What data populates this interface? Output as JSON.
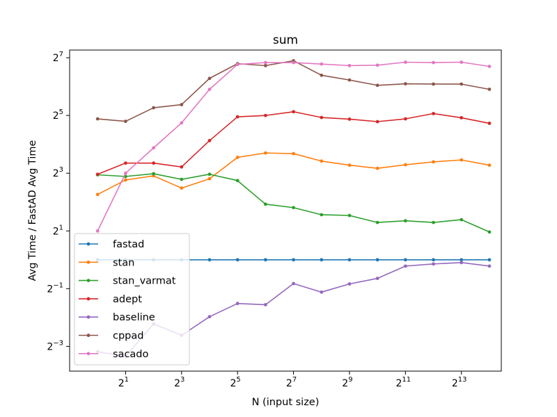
{
  "chart_data": {
    "type": "line",
    "title": "sum",
    "xlabel": "N (input size)",
    "ylabel": "Avg Time / FastAD Avg Time",
    "x_scale": "log2",
    "y_scale": "log2",
    "xlim": [
      0.5,
      22000
    ],
    "ylim": [
      0.069,
      154
    ],
    "x_ticks": [
      {
        "base": "2",
        "exp": "1",
        "value": 2
      },
      {
        "base": "2",
        "exp": "3",
        "value": 8
      },
      {
        "base": "2",
        "exp": "5",
        "value": 32
      },
      {
        "base": "2",
        "exp": "7",
        "value": 128
      },
      {
        "base": "2",
        "exp": "9",
        "value": 512
      },
      {
        "base": "2",
        "exp": "11",
        "value": 2048
      },
      {
        "base": "2",
        "exp": "13",
        "value": 8192
      }
    ],
    "y_ticks": [
      {
        "base": "2",
        "exp": "−3",
        "value": 0.125
      },
      {
        "base": "2",
        "exp": "−1",
        "value": 0.5
      },
      {
        "base": "2",
        "exp": "1",
        "value": 2
      },
      {
        "base": "2",
        "exp": "3",
        "value": 8
      },
      {
        "base": "2",
        "exp": "5",
        "value": 32
      },
      {
        "base": "2",
        "exp": "7",
        "value": 128
      }
    ],
    "x": [
      1,
      2,
      4,
      8,
      16,
      32,
      64,
      128,
      256,
      512,
      1024,
      2048,
      4096,
      8192,
      16384
    ],
    "legend_position": "lower-left",
    "grid": false,
    "series": [
      {
        "name": "fastad",
        "color": "#1f77b4",
        "values": [
          1,
          1,
          1,
          1,
          1,
          1,
          1,
          1,
          1,
          1,
          1,
          1,
          1,
          1,
          1
        ]
      },
      {
        "name": "stan",
        "color": "#ff7f0e",
        "values": [
          4.8,
          6.8,
          7.5,
          5.6,
          7.0,
          11.7,
          13.0,
          12.8,
          10.7,
          9.7,
          9.0,
          9.8,
          10.5,
          11.0,
          9.7
        ]
      },
      {
        "name": "stan_varmat",
        "color": "#2ca02c",
        "values": [
          7.7,
          7.4,
          7.9,
          6.9,
          7.8,
          6.7,
          3.8,
          3.5,
          2.95,
          2.9,
          2.45,
          2.55,
          2.45,
          2.62,
          1.95
        ]
      },
      {
        "name": "adept",
        "color": "#d62728",
        "values": [
          7.8,
          10.2,
          10.2,
          9.3,
          17.5,
          31,
          32,
          35,
          30.5,
          29.3,
          27.6,
          29.5,
          33.5,
          30.3,
          26.5
        ]
      },
      {
        "name": "baseline",
        "color": "#9467bd",
        "values": [
          0.11,
          0.098,
          0.215,
          0.163,
          0.255,
          0.35,
          0.34,
          0.565,
          0.46,
          0.56,
          0.64,
          0.86,
          0.905,
          0.935,
          0.86
        ]
      },
      {
        "name": "cppad",
        "color": "#8c564b",
        "values": [
          29.5,
          27.8,
          38.5,
          41.5,
          78,
          111,
          106,
          119,
          84,
          75,
          66,
          68.5,
          68,
          68,
          60
        ]
      },
      {
        "name": "sacado",
        "color": "#e377c2",
        "values": [
          2.0,
          8.0,
          14.7,
          26.8,
          60,
          109,
          114,
          114,
          110,
          106,
          107,
          115,
          114,
          115,
          104
        ]
      }
    ]
  }
}
